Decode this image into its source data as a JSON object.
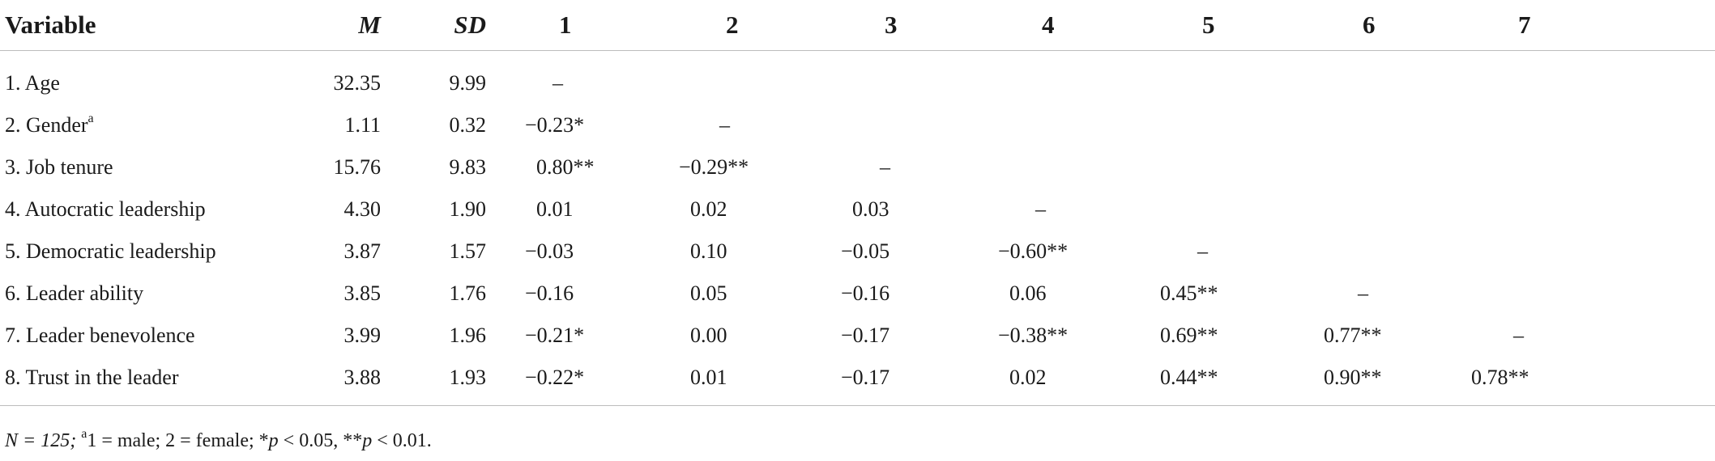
{
  "table": {
    "headers": {
      "variable": "Variable",
      "m": "M",
      "sd": "SD",
      "c1": "1",
      "c2": "2",
      "c3": "3",
      "c4": "4",
      "c5": "5",
      "c6": "6",
      "c7": "7"
    },
    "rows": [
      {
        "variable": "1. Age",
        "sup": "",
        "m": "32.35",
        "sd": "9.99",
        "c1": "–",
        "c2": "",
        "c3": "",
        "c4": "",
        "c5": "",
        "c6": "",
        "c7": ""
      },
      {
        "variable": "2. Gender",
        "sup": "a",
        "m": "1.11",
        "sd": "0.32",
        "c1": "−0.23*",
        "c2": "–",
        "c3": "",
        "c4": "",
        "c5": "",
        "c6": "",
        "c7": ""
      },
      {
        "variable": "3. Job tenure",
        "sup": "",
        "m": "15.76",
        "sd": "9.83",
        "c1": "0.80**",
        "c2": "−0.29**",
        "c3": "–",
        "c4": "",
        "c5": "",
        "c6": "",
        "c7": ""
      },
      {
        "variable": "4. Autocratic leadership",
        "sup": "",
        "m": "4.30",
        "sd": "1.90",
        "c1": "0.01",
        "c2": "0.02",
        "c3": "0.03",
        "c4": "–",
        "c5": "",
        "c6": "",
        "c7": ""
      },
      {
        "variable": "5. Democratic leadership",
        "sup": "",
        "m": "3.87",
        "sd": "1.57",
        "c1": "−0.03",
        "c2": "0.10",
        "c3": "−0.05",
        "c4": "−0.60**",
        "c5": "–",
        "c6": "",
        "c7": ""
      },
      {
        "variable": "6. Leader ability",
        "sup": "",
        "m": "3.85",
        "sd": "1.76",
        "c1": "−0.16",
        "c2": "0.05",
        "c3": "−0.16",
        "c4": "0.06",
        "c5": "0.45**",
        "c6": "–",
        "c7": ""
      },
      {
        "variable": "7. Leader benevolence",
        "sup": "",
        "m": "3.99",
        "sd": "1.96",
        "c1": "−0.21*",
        "c2": "0.00",
        "c3": "−0.17",
        "c4": "−0.38**",
        "c5": "0.69**",
        "c6": "0.77**",
        "c7": "–"
      },
      {
        "variable": "8. Trust in the leader",
        "sup": "",
        "m": "3.88",
        "sd": "1.93",
        "c1": "−0.22*",
        "c2": "0.01",
        "c3": "−0.17",
        "c4": "0.02",
        "c5": "0.44**",
        "c6": "0.90**",
        "c7": "0.78**"
      }
    ]
  },
  "note": {
    "n_label": "N = 125;",
    "sup": "a",
    "text": "1 = male; 2 = female; *",
    "p1": "p",
    "mid": " < 0.05, **",
    "p2": "p",
    "end": " < 0.01."
  }
}
